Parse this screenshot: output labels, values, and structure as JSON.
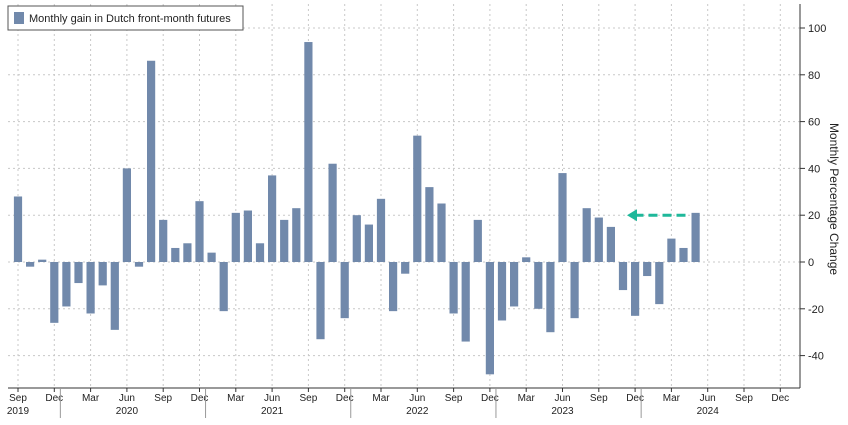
{
  "chart_data": {
    "type": "bar",
    "legend": {
      "label": "Monthly gain in Dutch front-month futures",
      "placement": "top-left"
    },
    "ylabel": "Monthly Percentage Change",
    "ylim": [
      -50,
      110
    ],
    "yticks": [
      -40,
      -20,
      0,
      20,
      40,
      60,
      80,
      100
    ],
    "y_axis_side": "right",
    "grid": true,
    "x": [
      "2019-09",
      "2019-10",
      "2019-11",
      "2019-12",
      "2020-01",
      "2020-02",
      "2020-03",
      "2020-04",
      "2020-05",
      "2020-06",
      "2020-07",
      "2020-08",
      "2020-09",
      "2020-10",
      "2020-11",
      "2020-12",
      "2021-01",
      "2021-02",
      "2021-03",
      "2021-04",
      "2021-05",
      "2021-06",
      "2021-07",
      "2021-08",
      "2021-09",
      "2021-10",
      "2021-11",
      "2021-12",
      "2022-01",
      "2022-02",
      "2022-03",
      "2022-04",
      "2022-05",
      "2022-06",
      "2022-07",
      "2022-08",
      "2022-09",
      "2022-10",
      "2022-11",
      "2022-12",
      "2023-01",
      "2023-02",
      "2023-03",
      "2023-04",
      "2023-05",
      "2023-06",
      "2023-07",
      "2023-08",
      "2023-09",
      "2023-10",
      "2023-11",
      "2023-12",
      "2024-01",
      "2024-02",
      "2024-03",
      "2024-04",
      "2024-05"
    ],
    "values": [
      28,
      -2,
      1,
      -26,
      -19,
      -9,
      -22,
      -10,
      -29,
      40,
      -2,
      86,
      18,
      6,
      8,
      26,
      4,
      -21,
      21,
      22,
      8,
      37,
      18,
      23,
      94,
      -33,
      42,
      -24,
      20,
      16,
      27,
      -21,
      -5,
      54,
      32,
      25,
      -22,
      -34,
      18,
      -48,
      -25,
      -19,
      2,
      -20,
      -30,
      38,
      -24,
      23,
      19,
      15,
      -12,
      -23,
      -6,
      -18,
      10,
      6,
      21
    ],
    "xticks": [
      {
        "month": "Sep",
        "year": "2019",
        "x": "2019-09"
      },
      {
        "month": "Dec",
        "x": "2019-12"
      },
      {
        "month": "Mar",
        "x": "2020-03"
      },
      {
        "month": "Jun",
        "year": "2020",
        "x": "2020-06"
      },
      {
        "month": "Sep",
        "x": "2020-09"
      },
      {
        "month": "Dec",
        "x": "2020-12"
      },
      {
        "month": "Mar",
        "x": "2021-03"
      },
      {
        "month": "Jun",
        "year": "2021",
        "x": "2021-06"
      },
      {
        "month": "Sep",
        "x": "2021-09"
      },
      {
        "month": "Dec",
        "x": "2021-12"
      },
      {
        "month": "Mar",
        "x": "2022-03"
      },
      {
        "month": "Jun",
        "year": "2022",
        "x": "2022-06"
      },
      {
        "month": "Sep",
        "x": "2022-09"
      },
      {
        "month": "Dec",
        "x": "2022-12"
      },
      {
        "month": "Mar",
        "x": "2023-03"
      },
      {
        "month": "Jun",
        "year": "2023",
        "x": "2023-06"
      },
      {
        "month": "Sep",
        "x": "2023-09"
      },
      {
        "month": "Dec",
        "x": "2023-12"
      },
      {
        "month": "Mar",
        "x": "2024-03"
      },
      {
        "month": "Jun",
        "year": "2024",
        "x": "2024-06"
      },
      {
        "month": "Sep",
        "x": "2024-09"
      },
      {
        "month": "Dec",
        "x": "2024-12"
      }
    ],
    "annotation": {
      "type": "dashed-arrow",
      "from": "2024-04",
      "to": "2023-11",
      "y": 20,
      "color": "#1fb89a"
    },
    "colors": {
      "bar": "#7189ab",
      "grid": "#c8c8c8",
      "axis": "#333333",
      "text": "#222222"
    }
  }
}
